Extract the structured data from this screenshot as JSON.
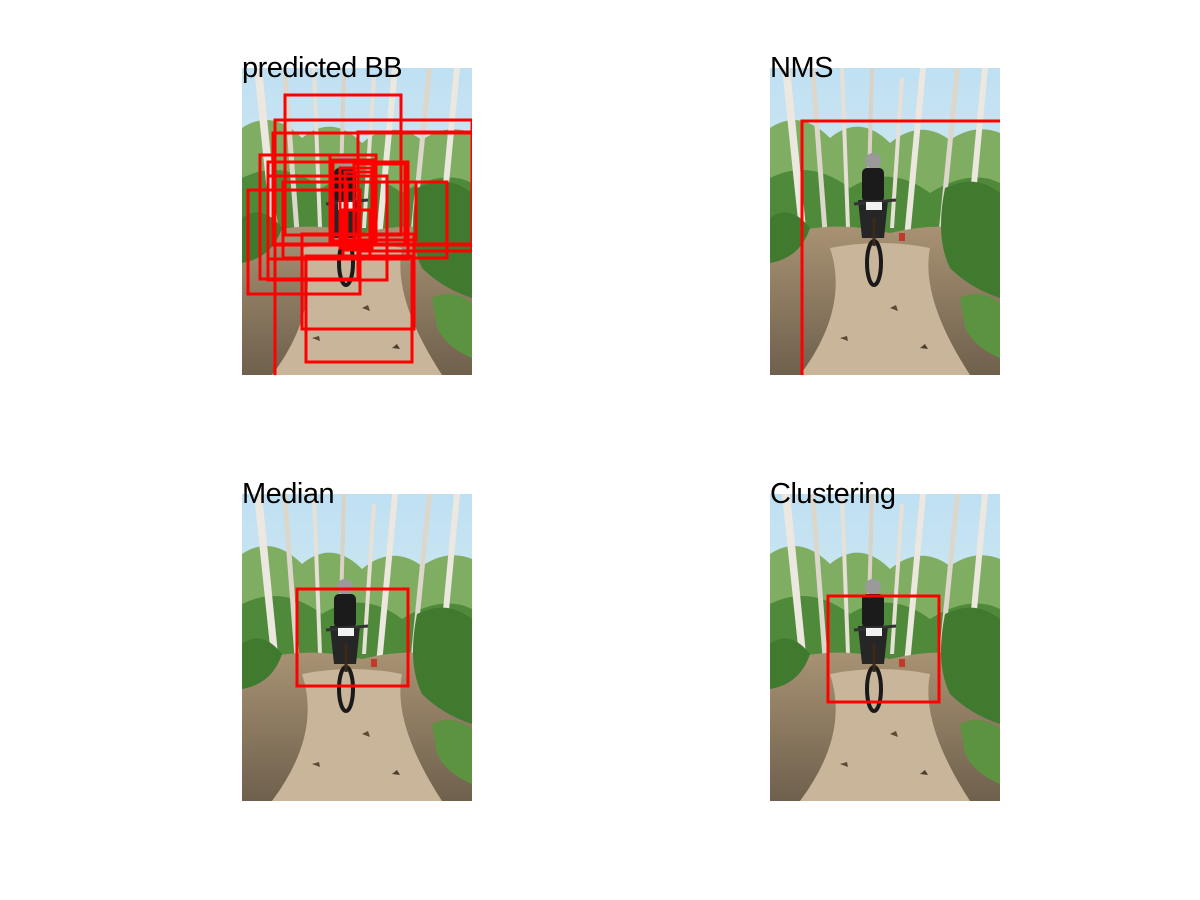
{
  "figure": {
    "panels": [
      {
        "title": "predicted BB"
      },
      {
        "title": "NMS"
      },
      {
        "title": "Median"
      },
      {
        "title": "Clustering"
      }
    ]
  },
  "colors": {
    "box": "#ff0000",
    "sky": "#cfe6f2",
    "foliage": "#4f8a3a",
    "trunk": "#e9e4dc",
    "path": "#b8a38a",
    "soil": "#7a6a55",
    "rider": "#1b1b1b"
  }
}
